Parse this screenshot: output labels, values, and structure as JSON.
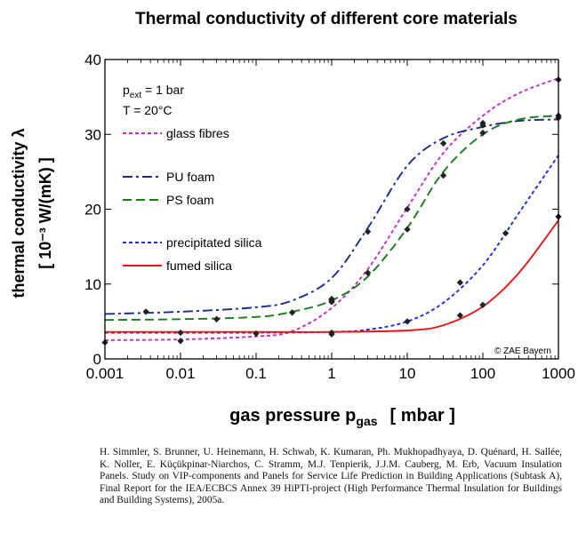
{
  "chart_data": {
    "type": "line",
    "title": "Thermal conductivity of different core materials",
    "ylabel_line1": "thermal conductivity λ",
    "ylabel_line2": "[ 10⁻³ W/(mK) ]",
    "xlabel": "gas pressure p",
    "xlabel_sub": "gas",
    "xlabel_unit": "[ mbar ]",
    "xscale": "log",
    "xlim": [
      0.001,
      1000
    ],
    "ylim": [
      0,
      40
    ],
    "xticks": [
      "0.001",
      "0.01",
      "0.1",
      "1",
      "10",
      "100",
      "1000"
    ],
    "yticks": [
      "0",
      "10",
      "20",
      "30",
      "40"
    ],
    "conditions": {
      "pressure_main": "p",
      "pressure_sub": "ext",
      "pressure_value": " = 1 bar",
      "temperature": "T = 20°C"
    },
    "credit": "© ZAE Bayern",
    "series": [
      {
        "name": "glass fibres",
        "color": "#c030c8",
        "dash": "4,3",
        "x": [
          0.001,
          0.01,
          0.1,
          0.3,
          1,
          3,
          10,
          30,
          100,
          300,
          1000
        ],
        "y": [
          2.5,
          2.6,
          3.0,
          3.7,
          6.8,
          12.0,
          20.2,
          27.5,
          32.5,
          35.5,
          37.5
        ],
        "markers": [
          [
            1,
            7.8
          ],
          [
            3,
            11.5
          ],
          [
            10,
            20.0
          ],
          [
            100,
            31.2
          ],
          [
            1000,
            37.3
          ]
        ]
      },
      {
        "name": "PU foam",
        "color": "#1a2a8a",
        "dash": "11,4,3,4",
        "x": [
          0.001,
          0.01,
          0.1,
          0.3,
          1,
          3,
          10,
          30,
          100,
          300,
          1000
        ],
        "y": [
          6.0,
          6.3,
          6.9,
          7.8,
          10.8,
          17.5,
          25.8,
          29.5,
          31.0,
          31.8,
          32.0
        ],
        "markers": [
          [
            0.0035,
            6.3
          ],
          [
            1,
            8.0
          ],
          [
            3,
            17.0
          ],
          [
            30,
            28.8
          ],
          [
            100,
            31.5
          ],
          [
            1000,
            32.2
          ]
        ]
      },
      {
        "name": "PS foam",
        "color": "#1a7a1a",
        "dash": "10,5",
        "x": [
          0.001,
          0.01,
          0.1,
          0.3,
          1,
          3,
          10,
          30,
          100,
          300,
          1000
        ],
        "y": [
          5.2,
          5.3,
          5.6,
          6.3,
          7.8,
          11.0,
          17.5,
          25.0,
          30.0,
          32.0,
          32.5
        ],
        "markers": [
          [
            0.03,
            5.3
          ],
          [
            0.3,
            6.2
          ],
          [
            1,
            7.6
          ],
          [
            10,
            17.3
          ],
          [
            30,
            24.5
          ],
          [
            100,
            30.2
          ],
          [
            1000,
            32.5
          ]
        ]
      },
      {
        "name": "precipitated silica",
        "color": "#1e2ed8",
        "dash": "4,3",
        "x": [
          0.001,
          0.01,
          0.1,
          1,
          3,
          10,
          30,
          100,
          300,
          1000
        ],
        "y": [
          3.5,
          3.5,
          3.5,
          3.6,
          3.9,
          5.0,
          7.5,
          12.5,
          19.5,
          27.2
        ],
        "markers": [
          [
            0.01,
            3.5
          ],
          [
            0.1,
            3.4
          ],
          [
            1,
            3.5
          ],
          [
            10,
            5.0
          ],
          [
            50,
            10.2
          ],
          [
            200,
            16.8
          ]
        ]
      },
      {
        "name": "fumed silica",
        "color": "#e01818",
        "dash": "",
        "x": [
          0.001,
          0.01,
          0.1,
          1,
          10,
          30,
          100,
          300,
          1000
        ],
        "y": [
          3.6,
          3.6,
          3.6,
          3.6,
          3.8,
          4.5,
          7.0,
          11.5,
          18.5
        ],
        "markers": [
          [
            0.001,
            2.2
          ],
          [
            0.01,
            2.4
          ],
          [
            1,
            3.3
          ],
          [
            50,
            5.8
          ],
          [
            100,
            7.2
          ],
          [
            1000,
            19.0
          ]
        ]
      }
    ]
  },
  "citation": "H. Simmler, S. Brunner, U. Heinemann, H. Schwab, K. Kumaran, Ph. Mukhopadhyaya, D. Quénard, H. Sallée, K. Noller, E. Küçükpinar-Niarchos, C. Stramm, M.J. Tenpierik, J.J.M. Cauberg, M. Erb, Vacuum Insulation Panels. Study on VIP-components and Panels for Service Life Prediction in Building Applications (Subtask A), Final Report for the IEA/ECBCS Annex 39 HiPTI-project (High Performance Thermal Insulation for Buildings and Building Systems), 2005a."
}
